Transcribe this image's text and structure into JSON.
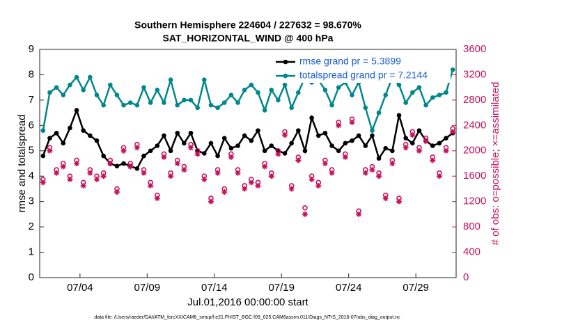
{
  "chart_data": {
    "type": "line",
    "title": [
      "Southern Hemisphere 224604 / 227632 = 98.670%",
      "SAT_HORIZONTAL_WIND @ 400 hPa"
    ],
    "xlabel": "Jul.01,2016 00:00:00 start",
    "ylabel": "rmse and totalspread",
    "y2label": "# of obs: o=possible; ×=assimilated",
    "footnote": "data file: /Users/raeder/DAI/ATM_forcXX/CAM6_setup/f.e21.FHIST_BGC.f09_025.CAM6assim.011/Diags_NTrS_2016-07/obs_diag_output.nc",
    "xlim": [
      0,
      31
    ],
    "xticks": [
      {
        "value": 3,
        "label": "07/04"
      },
      {
        "value": 8,
        "label": "07/09"
      },
      {
        "value": 13,
        "label": "07/14"
      },
      {
        "value": 18,
        "label": "07/19"
      },
      {
        "value": 23,
        "label": "07/24"
      },
      {
        "value": 28,
        "label": "07/29"
      }
    ],
    "ylim": [
      0,
      9
    ],
    "yticks": [
      0,
      1,
      2,
      3,
      4,
      5,
      6,
      7,
      8,
      9
    ],
    "y2lim": [
      0,
      3600
    ],
    "y2ticks": [
      0,
      400,
      800,
      1200,
      1600,
      2000,
      2400,
      2800,
      3200,
      3600
    ],
    "legend": "upper right",
    "x": [
      0.25,
      0.75,
      1.25,
      1.75,
      2.25,
      2.75,
      3.25,
      3.75,
      4.25,
      4.75,
      5.25,
      5.75,
      6.25,
      6.75,
      7.25,
      7.75,
      8.25,
      8.75,
      9.25,
      9.75,
      10.25,
      10.75,
      11.25,
      11.75,
      12.25,
      12.75,
      13.25,
      13.75,
      14.25,
      14.75,
      15.25,
      15.75,
      16.25,
      16.75,
      17.25,
      17.75,
      18.25,
      18.75,
      19.25,
      19.75,
      20.25,
      20.75,
      21.25,
      21.75,
      22.25,
      22.75,
      23.25,
      23.75,
      24.25,
      24.75,
      25.25,
      25.75,
      26.25,
      26.75,
      27.25,
      27.75,
      28.25,
      28.75,
      29.25,
      29.75,
      30.25,
      30.75
    ],
    "series": [
      {
        "name": "rmse grand pr = 5.3899",
        "color": "#000000",
        "marker": "dot",
        "axis": "y",
        "values": [
          4.8,
          5.5,
          5.7,
          5.3,
          5.9,
          6.6,
          5.8,
          5.6,
          5.4,
          4.8,
          4.5,
          4.4,
          4.5,
          4.4,
          4.3,
          4.8,
          5.0,
          5.2,
          5.6,
          5.0,
          5.7,
          5.3,
          5.7,
          5.0,
          4.9,
          5.3,
          4.8,
          5.5,
          5.1,
          5.2,
          5.6,
          5.4,
          5.8,
          5.0,
          5.2,
          5.0,
          4.9,
          5.3,
          5.8,
          5.0,
          6.3,
          5.6,
          5.7,
          5.2,
          5.0,
          5.3,
          5.4,
          5.6,
          5.2,
          5.6,
          4.7,
          5.1,
          5.0,
          6.4,
          5.5,
          5.3,
          5.8,
          5.4,
          5.2,
          5.3,
          5.5,
          5.7
        ]
      },
      {
        "name": "totalspread grand pr = 7.2144",
        "color": "#00878a",
        "marker": "dot",
        "axis": "y",
        "values": [
          5.8,
          7.3,
          7.5,
          7.2,
          7.6,
          7.9,
          7.4,
          7.9,
          7.2,
          6.8,
          7.6,
          7.2,
          6.8,
          6.9,
          6.8,
          7.5,
          6.9,
          7.4,
          6.9,
          7.8,
          6.8,
          7.0,
          7.0,
          6.7,
          7.8,
          6.8,
          6.7,
          6.9,
          7.2,
          6.9,
          7.4,
          7.6,
          7.3,
          6.6,
          7.4,
          7.0,
          7.6,
          6.7,
          7.3,
          7.9,
          7.7,
          7.8,
          7.4,
          6.8,
          7.5,
          7.7,
          7.2,
          7.7,
          6.7,
          5.8,
          6.5,
          7.2,
          7.9,
          7.6,
          6.9,
          7.3,
          7.5,
          6.8,
          7.1,
          7.2,
          7.3,
          8.2
        ]
      },
      {
        "color": "#c8105a",
        "marker": "circle",
        "axis": "y2",
        "values": [
          1550,
          2050,
          1700,
          1800,
          1600,
          1850,
          1500,
          1700,
          1600,
          1650,
          1850,
          1400,
          2050,
          1800,
          2100,
          1700,
          1500,
          1300,
          1950,
          1650,
          1850,
          1750,
          2100,
          2000,
          1600,
          1250,
          1700,
          1400,
          1950,
          1700,
          1450,
          1550,
          1500,
          1800,
          1650,
          2000,
          2300,
          1450,
          1900,
          1100,
          1600,
          1500,
          1850,
          1700,
          2450,
          1950,
          2500,
          1050,
          1700,
          1750,
          1650,
          1300,
          1850,
          1250,
          2100,
          2300,
          2050,
          2200,
          1900,
          1650,
          2050,
          2350
        ]
      },
      {
        "color": "#c8105a",
        "marker": "star",
        "axis": "y2",
        "values": [
          1500,
          2000,
          1650,
          1750,
          1550,
          1800,
          1450,
          1650,
          1550,
          1600,
          1800,
          1350,
          2000,
          1750,
          2050,
          1650,
          1450,
          1250,
          1900,
          1600,
          1800,
          1700,
          2050,
          1950,
          1550,
          1200,
          1650,
          1350,
          1900,
          1650,
          1400,
          1500,
          1450,
          1750,
          1600,
          1950,
          2250,
          1400,
          1850,
          1000,
          1550,
          1450,
          1800,
          1650,
          2400,
          1900,
          2450,
          1000,
          1650,
          1700,
          1600,
          1250,
          1800,
          1200,
          2050,
          2250,
          2000,
          2150,
          1850,
          1600,
          2000,
          2300
        ]
      }
    ]
  }
}
